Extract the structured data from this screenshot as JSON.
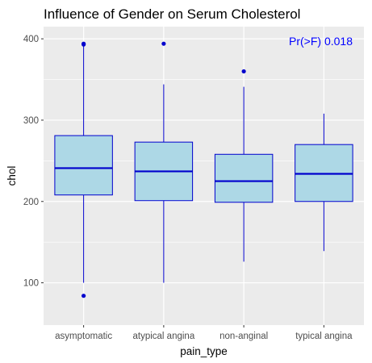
{
  "chart_data": {
    "type": "box",
    "title": "Influence of Gender on Serum Cholesterol",
    "xlabel": "pain_type",
    "ylabel": "chol",
    "ylim": [
      48,
      415
    ],
    "yticks": [
      100,
      200,
      300,
      400
    ],
    "grid": true,
    "categories": [
      "asymptomatic",
      "atypical angina",
      "non-anginal",
      "typical angina"
    ],
    "boxes": [
      {
        "category": "asymptomatic",
        "whisker_low": 100,
        "q1": 208,
        "median": 241,
        "q3": 281,
        "whisker_high": 391,
        "outliers": [
          84,
          393,
          394
        ]
      },
      {
        "category": "atypical angina",
        "whisker_low": 100,
        "q1": 201,
        "median": 237,
        "q3": 273,
        "whisker_high": 344,
        "outliers": [
          394
        ]
      },
      {
        "category": "non-anginal",
        "whisker_low": 126,
        "q1": 199,
        "median": 225,
        "q3": 258,
        "whisker_high": 341,
        "outliers": [
          360
        ]
      },
      {
        "category": "typical angina",
        "whisker_low": 139,
        "q1": 200,
        "median": 234,
        "q3": 270,
        "whisker_high": 308,
        "outliers": []
      }
    ],
    "annotation": {
      "text": "Pr(>F) 0.018",
      "color": "#0000ff"
    },
    "colors": {
      "box_fill": "#add8e6",
      "box_stroke": "#0000cd",
      "panel_bg": "#ebebeb",
      "grid": "#ffffff"
    }
  }
}
